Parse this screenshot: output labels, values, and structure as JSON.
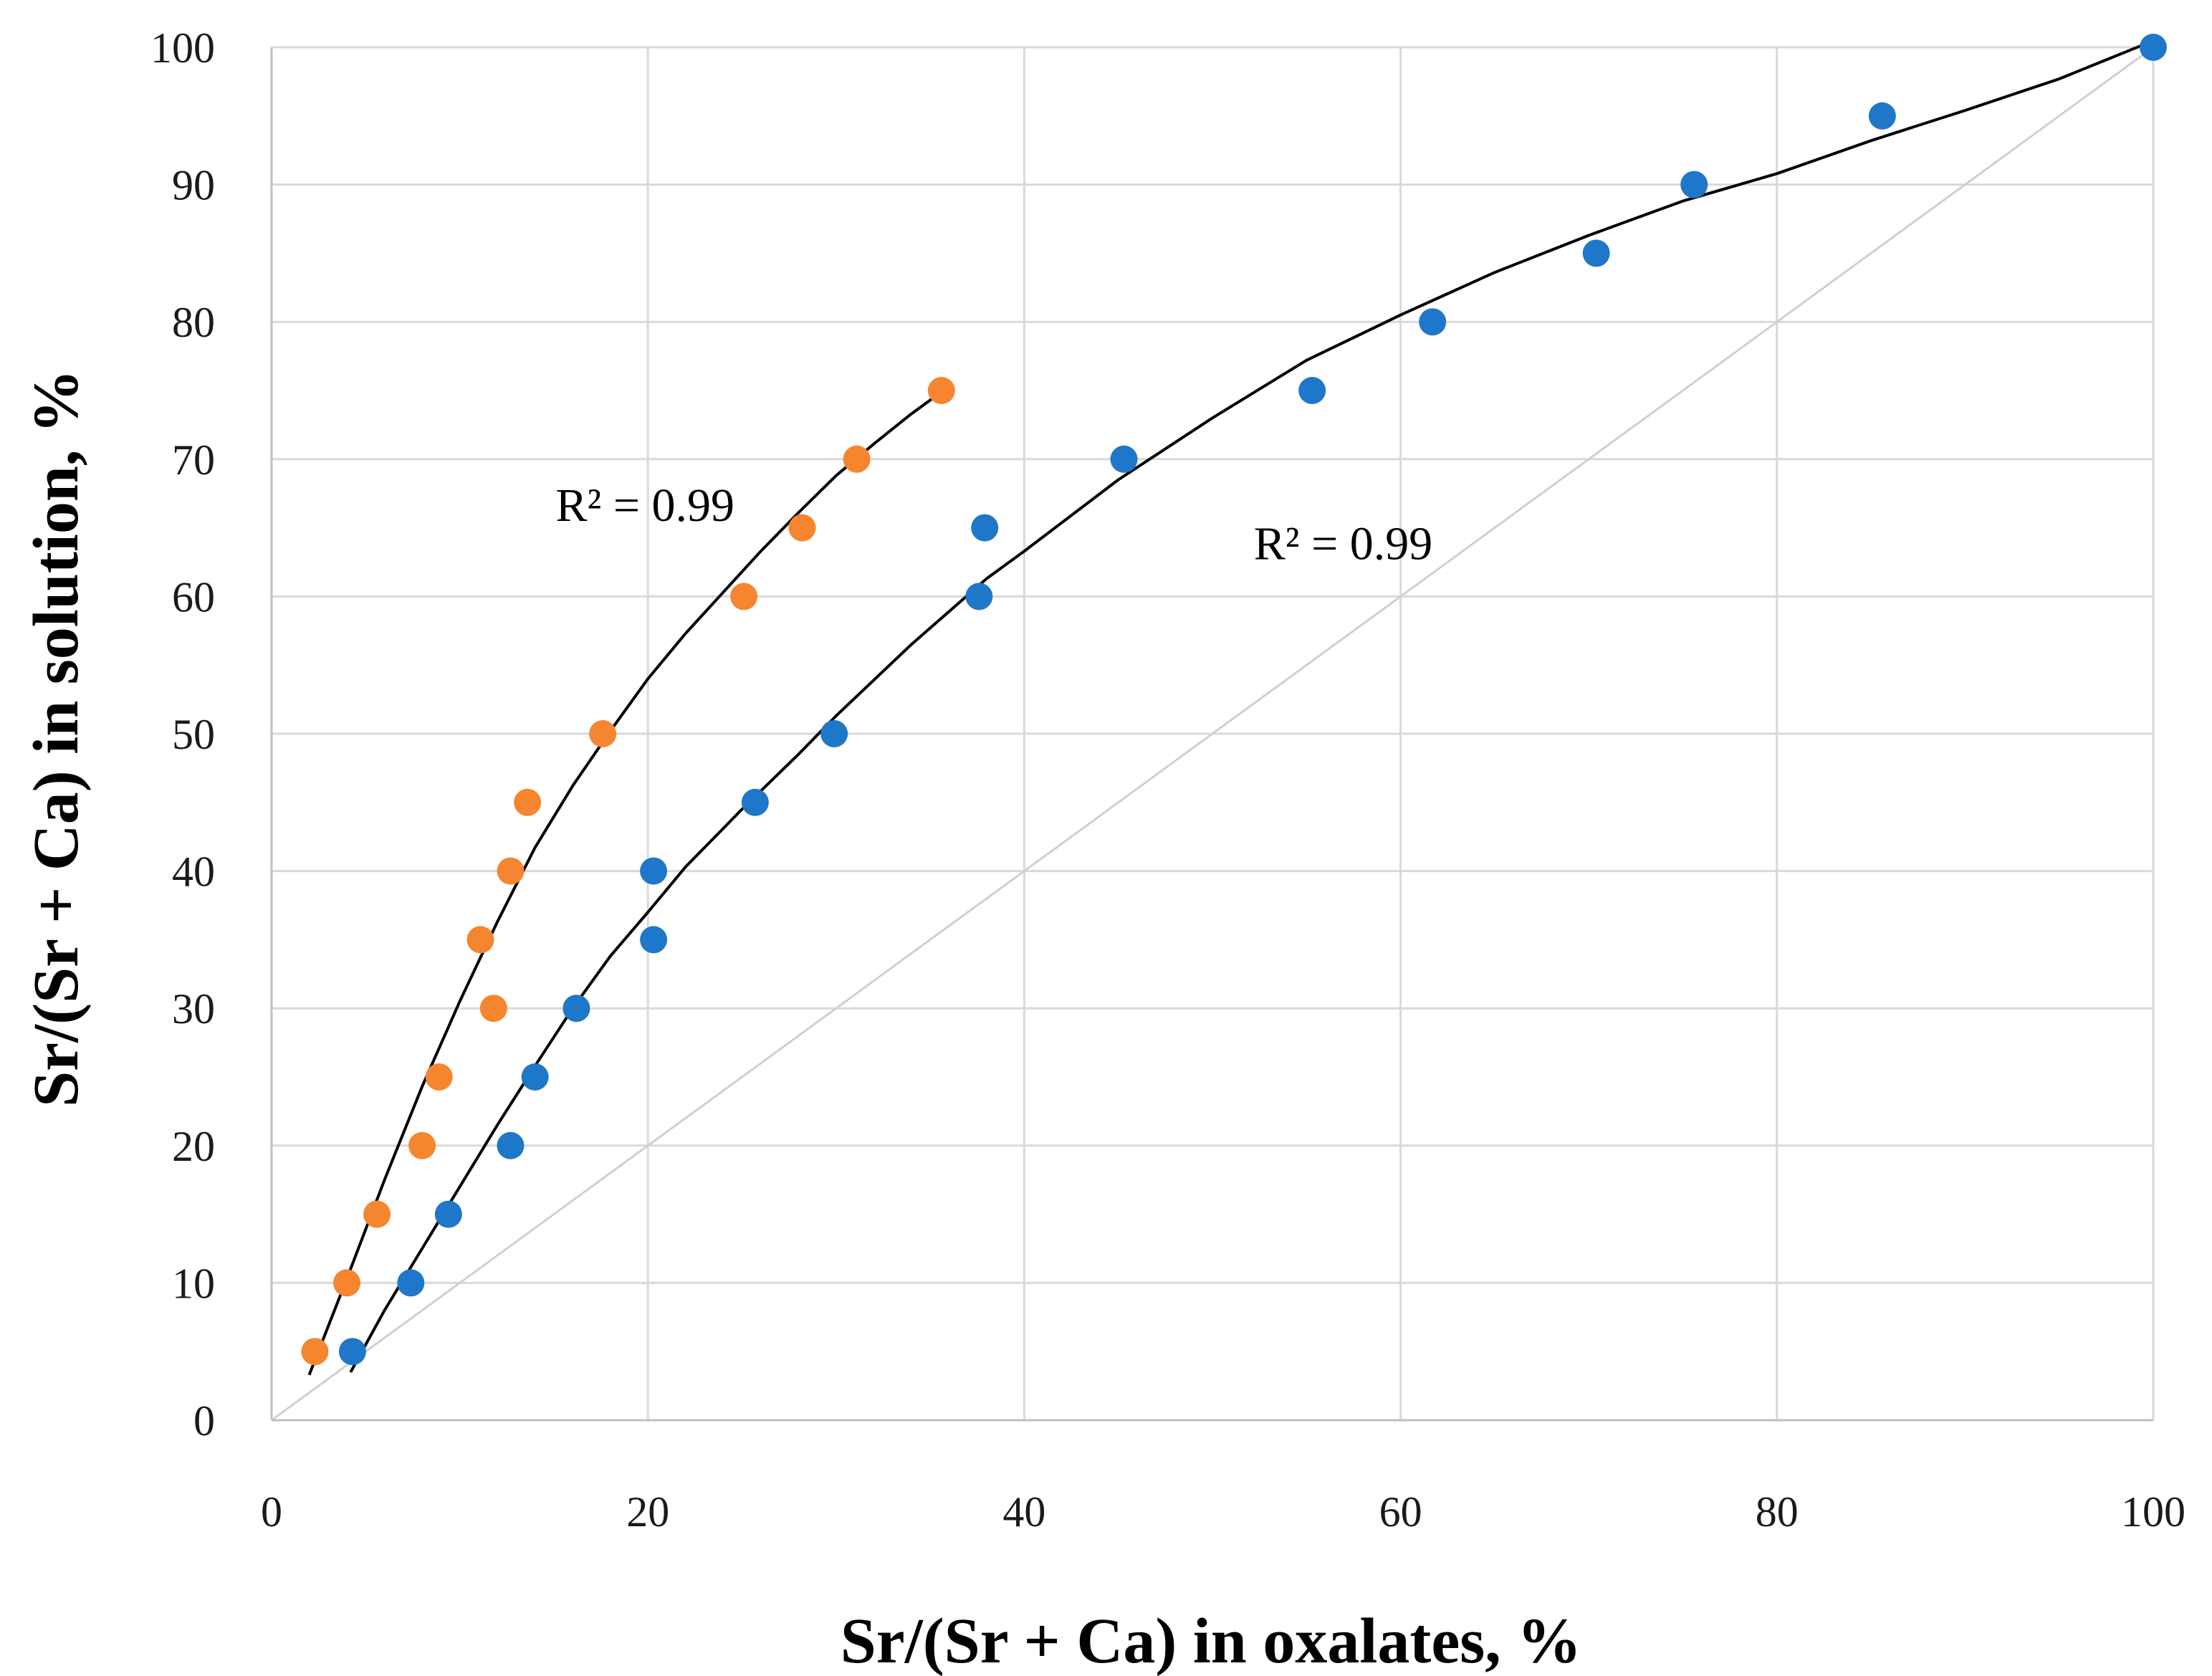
{
  "chart_data": {
    "type": "scatter",
    "title": "",
    "xlabel": "Sr/(Sr + Ca) in oxalates, %",
    "ylabel": "Sr/(Sr + Ca) in solution, %",
    "xlim": [
      0,
      100
    ],
    "ylim": [
      0,
      100
    ],
    "x_ticks": [
      "0",
      "20",
      "40",
      "60",
      "80",
      "100"
    ],
    "y_ticks": [
      "0",
      "10",
      "20",
      "30",
      "40",
      "50",
      "60",
      "70",
      "80",
      "90",
      "100"
    ],
    "grid": true,
    "legend": "none",
    "series": [
      {
        "name": "series-orange",
        "color": "#F5862F",
        "points": [
          [
            2.3,
            5
          ],
          [
            4.0,
            10
          ],
          [
            5.6,
            15
          ],
          [
            8.0,
            20
          ],
          [
            8.9,
            25
          ],
          [
            11.8,
            30
          ],
          [
            11.1,
            35
          ],
          [
            12.7,
            40
          ],
          [
            13.6,
            45
          ],
          [
            17.6,
            50
          ],
          [
            25.1,
            60
          ],
          [
            28.2,
            65
          ],
          [
            31.1,
            70
          ],
          [
            35.6,
            75
          ]
        ],
        "trendline": [
          [
            2.0,
            3.3
          ],
          [
            4,
            10.3
          ],
          [
            6,
            17.5
          ],
          [
            8,
            24.3
          ],
          [
            10,
            30.5
          ],
          [
            12,
            36.3
          ],
          [
            14,
            41.7
          ],
          [
            16,
            46.2
          ],
          [
            18,
            50.2
          ],
          [
            20,
            54.0
          ],
          [
            22,
            57.3
          ],
          [
            24,
            60.3
          ],
          [
            26,
            63.3
          ],
          [
            28,
            66.1
          ],
          [
            30,
            68.8
          ],
          [
            32,
            71.1
          ],
          [
            34,
            73.3
          ],
          [
            35.2,
            74.5
          ]
        ]
      },
      {
        "name": "series-blue",
        "color": "#1F77C9",
        "points": [
          [
            4.3,
            5
          ],
          [
            7.4,
            10
          ],
          [
            9.4,
            15
          ],
          [
            12.7,
            20
          ],
          [
            14.0,
            25
          ],
          [
            16.2,
            30
          ],
          [
            20.3,
            35
          ],
          [
            20.3,
            40
          ],
          [
            25.7,
            45
          ],
          [
            29.9,
            50
          ],
          [
            37.6,
            60
          ],
          [
            37.9,
            65
          ],
          [
            45.3,
            70
          ],
          [
            55.3,
            75
          ],
          [
            61.7,
            80
          ],
          [
            70.4,
            85
          ],
          [
            75.6,
            90
          ],
          [
            85.6,
            95
          ],
          [
            100,
            100
          ]
        ],
        "trendline": [
          [
            4.2,
            3.5
          ],
          [
            6,
            8.0
          ],
          [
            8,
            12.5
          ],
          [
            10,
            17.0
          ],
          [
            12,
            21.5
          ],
          [
            14,
            25.8
          ],
          [
            16,
            30.0
          ],
          [
            18,
            33.8
          ],
          [
            20,
            37.0
          ],
          [
            22,
            40.3
          ],
          [
            25,
            44.5
          ],
          [
            28,
            48.5
          ],
          [
            30,
            51.3
          ],
          [
            34,
            56.5
          ],
          [
            38,
            61.3
          ],
          [
            40,
            63.3
          ],
          [
            45,
            68.5
          ],
          [
            50,
            73.0
          ],
          [
            55,
            77.2
          ],
          [
            60,
            80.5
          ],
          [
            65,
            83.6
          ],
          [
            70,
            86.3
          ],
          [
            75,
            88.8
          ],
          [
            80,
            90.8
          ],
          [
            85,
            93.2
          ],
          [
            90,
            95.4
          ],
          [
            95,
            97.7
          ],
          [
            99.5,
            100.2
          ]
        ]
      }
    ],
    "reference_line": {
      "name": "y = x",
      "color": "#D0D0D0",
      "points": [
        [
          0,
          0
        ],
        [
          100,
          100
        ]
      ]
    },
    "annotations": [
      {
        "name": "r2-orange",
        "text": "R² = 0.99",
        "x": 15.1,
        "y": 65.5
      },
      {
        "name": "r2-blue",
        "text": "R² = 0.99",
        "x": 52.2,
        "y": 62.7
      }
    ]
  }
}
